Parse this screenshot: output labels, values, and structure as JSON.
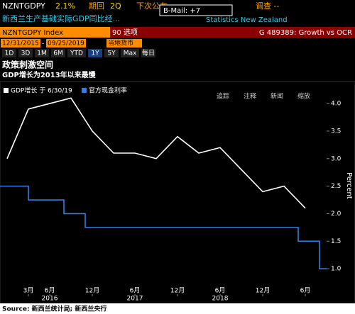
{
  "header": {
    "ticker": "NZNTGDPY",
    "last": "2.1%",
    "period_label": "期回",
    "period": "2Q",
    "next": "下次公布",
    "survey": "调查 --",
    "bmail": "B-Mail: +7",
    "description": "新西兰生产基础实际GDP同比经...",
    "source_name": "Statistics New Zealand",
    "index": "NZNTGDPY Index",
    "options": "90 选项",
    "graph": "G 489389: Growth vs OCR",
    "start_date": "12/31/2015",
    "end_date": "09/25/2019",
    "currency": "当地货币",
    "ranges": [
      "1D",
      "3D",
      "1M",
      "6M",
      "YTD",
      "1Y",
      "5Y",
      "Max",
      "每日"
    ],
    "tools": [
      "追踪",
      "注释",
      "新闻",
      "缩放"
    ]
  },
  "footer": "Source: 新西兰统计局; 新西兰央行",
  "chart_data": {
    "type": "line",
    "title": "政策刺激空间",
    "subtitle": "GDP增长为2013年以来最慢",
    "y_label": "Percent",
    "xlim": [
      "2015-11",
      "2019-09"
    ],
    "ylim": [
      0.5,
      4.4
    ],
    "yticks": [
      {
        "value": 1,
        "label": "1.0"
      },
      {
        "value": 1.5,
        "label": "1.5"
      },
      {
        "value": 2,
        "label": "2.0"
      },
      {
        "value": 2.5,
        "label": "2.5"
      },
      {
        "value": 3,
        "label": "3.0"
      },
      {
        "value": 3.5,
        "label": "3.5"
      },
      {
        "value": 4,
        "label": "4.0"
      }
    ],
    "xticks": [
      {
        "value": "2016-03",
        "label": "3月"
      },
      {
        "value": "2016-06",
        "label": "6月"
      },
      {
        "value": "2016-12",
        "label": "12月"
      },
      {
        "value": "2017-06",
        "label": "6月"
      },
      {
        "value": "2017-12",
        "label": "12月"
      },
      {
        "value": "2018-06",
        "label": "6月"
      },
      {
        "value": "2018-12",
        "label": "12月"
      },
      {
        "value": "2019-06",
        "label": "6月"
      }
    ],
    "year_labels": [
      {
        "value": "2016-06",
        "label": "2016"
      },
      {
        "value": "2017-06",
        "label": "2017"
      },
      {
        "value": "2018-06",
        "label": "2018"
      }
    ],
    "series": [
      {
        "name": "GDP增长 于 6/30/19",
        "color": "#ffffff",
        "step": false,
        "x": [
          "2015-12",
          "2016-03",
          "2016-06",
          "2016-09",
          "2016-12",
          "2017-03",
          "2017-06",
          "2017-09",
          "2017-12",
          "2018-03",
          "2018-06",
          "2018-09",
          "2018-12",
          "2019-03",
          "2019-06"
        ],
        "values": [
          3.0,
          3.9,
          4.0,
          4.1,
          3.5,
          3.1,
          3.1,
          3.0,
          3.4,
          3.1,
          3.2,
          2.8,
          2.4,
          2.5,
          2.1
        ]
      },
      {
        "name": "官方现金利率",
        "color": "#2f7fe6",
        "step": true,
        "x": [
          "2015-11",
          "2016-03",
          "2016-08",
          "2016-11",
          "2019-05",
          "2019-08",
          "2019-09"
        ],
        "values": [
          2.5,
          2.25,
          2.0,
          1.75,
          1.5,
          1.0,
          1.0
        ]
      }
    ]
  }
}
